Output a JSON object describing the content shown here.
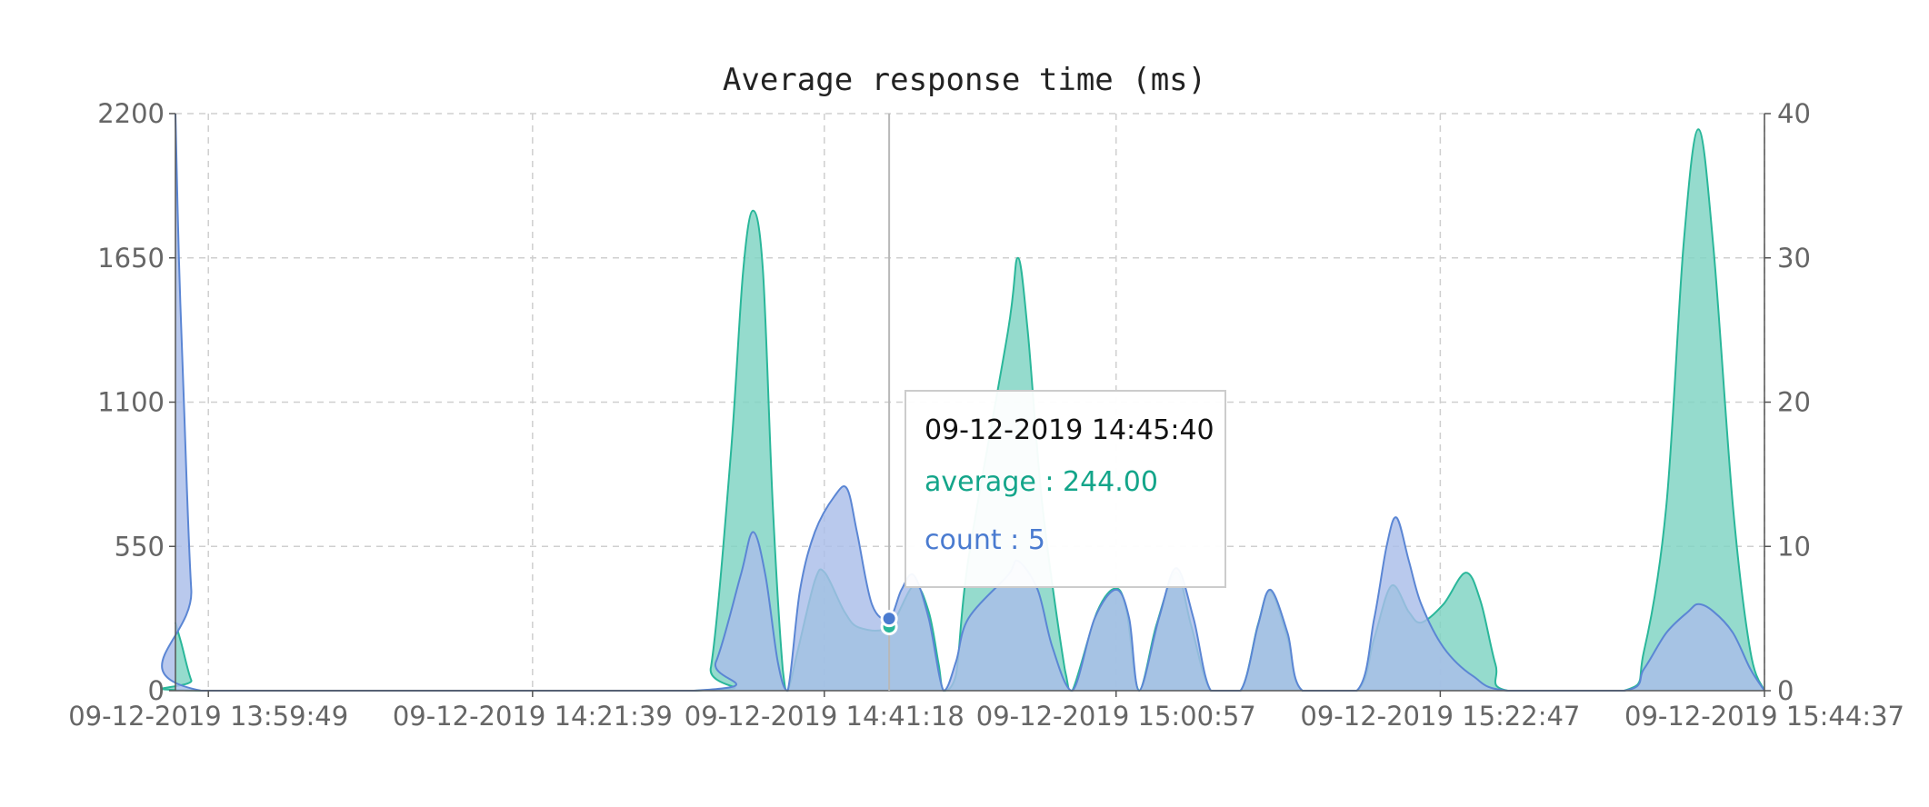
{
  "chart_data": {
    "type": "area",
    "title": "Average response time (ms)",
    "x_ticks": [
      "09-12-2019 13:59:49",
      "09-12-2019 14:21:39",
      "09-12-2019 14:41:18",
      "09-12-2019 15:00:57",
      "09-12-2019 15:22:47",
      "09-12-2019 15:44:37"
    ],
    "x_range": [
      "09-12-2019 13:57:36",
      "09-12-2019 15:44:37"
    ],
    "y_left": {
      "ticks": [
        0,
        550,
        1100,
        1650,
        2200
      ],
      "range": [
        0,
        2200
      ]
    },
    "y_right": {
      "ticks": [
        0,
        10,
        20,
        30,
        40
      ],
      "range": [
        0,
        40
      ]
    },
    "grid": true,
    "series": [
      {
        "name": "average",
        "axis": "left",
        "color": "#2ab79a",
        "fill": "#7ed3c2",
        "points": [
          [
            "09-12-2019 13:57:36",
            260
          ],
          [
            "09-12-2019 13:58:00",
            180
          ],
          [
            "09-12-2019 13:58:40",
            40
          ],
          [
            "09-12-2019 13:59:20",
            0
          ],
          [
            "09-12-2019 14:32:30",
            0
          ],
          [
            "09-12-2019 14:33:40",
            90
          ],
          [
            "09-12-2019 14:35:00",
            900
          ],
          [
            "09-12-2019 14:35:50",
            1600
          ],
          [
            "09-12-2019 14:36:30",
            1830
          ],
          [
            "09-12-2019 14:37:10",
            1600
          ],
          [
            "09-12-2019 14:37:50",
            700
          ],
          [
            "09-12-2019 14:38:30",
            80
          ],
          [
            "09-12-2019 14:38:50",
            0
          ],
          [
            "09-12-2019 14:39:30",
            150
          ],
          [
            "09-12-2019 14:40:40",
            420
          ],
          [
            "09-12-2019 14:41:20",
            450
          ],
          [
            "09-12-2019 14:42:40",
            300
          ],
          [
            "09-12-2019 14:43:40",
            240
          ],
          [
            "09-12-2019 14:45:40",
            244
          ],
          [
            "09-12-2019 14:47:20",
            400
          ],
          [
            "09-12-2019 14:48:20",
            300
          ],
          [
            "09-12-2019 14:49:00",
            100
          ],
          [
            "09-12-2019 14:49:20",
            0
          ],
          [
            "09-12-2019 14:50:10",
            60
          ],
          [
            "09-12-2019 14:51:00",
            500
          ],
          [
            "09-12-2019 14:53:40",
            1370
          ],
          [
            "09-12-2019 14:54:20",
            1650
          ],
          [
            "09-12-2019 14:55:00",
            1370
          ],
          [
            "09-12-2019 14:56:00",
            700
          ],
          [
            "09-12-2019 14:57:30",
            80
          ],
          [
            "09-12-2019 14:58:00",
            0
          ],
          [
            "09-12-2019 14:59:40",
            300
          ],
          [
            "09-12-2019 15:00:57",
            390
          ],
          [
            "09-12-2019 15:01:40",
            300
          ],
          [
            "09-12-2019 15:02:30",
            0
          ],
          [
            "09-12-2019 15:03:40",
            250
          ],
          [
            "09-12-2019 15:05:00",
            450
          ],
          [
            "09-12-2019 15:06:00",
            250
          ],
          [
            "09-12-2019 15:07:20",
            0
          ],
          [
            "09-12-2019 15:09:20",
            0
          ],
          [
            "09-12-2019 15:10:30",
            250
          ],
          [
            "09-12-2019 15:11:20",
            380
          ],
          [
            "09-12-2019 15:12:30",
            200
          ],
          [
            "09-12-2019 15:13:30",
            0
          ],
          [
            "09-12-2019 15:17:10",
            0
          ],
          [
            "09-12-2019 15:18:20",
            200
          ],
          [
            "09-12-2019 15:19:30",
            400
          ],
          [
            "09-12-2019 15:20:40",
            300
          ],
          [
            "09-12-2019 15:21:30",
            260
          ],
          [
            "09-12-2019 15:23:00",
            330
          ],
          [
            "09-12-2019 15:24:30",
            450
          ],
          [
            "09-12-2019 15:25:30",
            340
          ],
          [
            "09-12-2019 15:26:30",
            100
          ],
          [
            "09-12-2019 15:27:20",
            0
          ],
          [
            "09-12-2019 15:35:10",
            0
          ],
          [
            "09-12-2019 15:36:30",
            150
          ],
          [
            "09-12-2019 15:38:00",
            700
          ],
          [
            "09-12-2019 15:39:10",
            1700
          ],
          [
            "09-12-2019 15:40:10",
            2140
          ],
          [
            "09-12-2019 15:41:10",
            1700
          ],
          [
            "09-12-2019 15:42:30",
            700
          ],
          [
            "09-12-2019 15:43:40",
            150
          ],
          [
            "09-12-2019 15:44:37",
            0
          ]
        ]
      },
      {
        "name": "count",
        "axis": "right",
        "color": "#5b86d4",
        "fill": "#a9bde9",
        "points": [
          [
            "09-12-2019 13:57:36",
            40
          ],
          [
            "09-12-2019 13:57:50",
            30
          ],
          [
            "09-12-2019 13:58:10",
            20
          ],
          [
            "09-12-2019 13:58:40",
            7
          ],
          [
            "09-12-2019 13:59:20",
            0
          ],
          [
            "09-12-2019 14:32:30",
            0
          ],
          [
            "09-12-2019 14:34:00",
            2
          ],
          [
            "09-12-2019 14:35:40",
            8
          ],
          [
            "09-12-2019 14:36:30",
            11
          ],
          [
            "09-12-2019 14:37:20",
            8
          ],
          [
            "09-12-2019 14:38:10",
            2
          ],
          [
            "09-12-2019 14:38:50",
            0
          ],
          [
            "09-12-2019 14:39:40",
            7
          ],
          [
            "09-12-2019 14:40:40",
            11
          ],
          [
            "09-12-2019 14:42:00",
            13.5
          ],
          [
            "09-12-2019 14:42:50",
            14
          ],
          [
            "09-12-2019 14:43:30",
            11
          ],
          [
            "09-12-2019 14:44:30",
            6
          ],
          [
            "09-12-2019 14:45:40",
            5
          ],
          [
            "09-12-2019 14:46:30",
            7
          ],
          [
            "09-12-2019 14:47:20",
            8
          ],
          [
            "09-12-2019 14:48:20",
            5
          ],
          [
            "09-12-2019 14:49:20",
            0
          ],
          [
            "09-12-2019 14:50:10",
            2
          ],
          [
            "09-12-2019 14:51:00",
            5
          ],
          [
            "09-12-2019 14:53:40",
            8
          ],
          [
            "09-12-2019 14:54:20",
            9
          ],
          [
            "09-12-2019 14:55:40",
            7
          ],
          [
            "09-12-2019 14:56:40",
            3
          ],
          [
            "09-12-2019 14:58:00",
            0
          ],
          [
            "09-12-2019 14:59:30",
            5
          ],
          [
            "09-12-2019 15:00:57",
            7
          ],
          [
            "09-12-2019 15:01:50",
            5
          ],
          [
            "09-12-2019 15:02:30",
            0
          ],
          [
            "09-12-2019 15:03:50",
            5
          ],
          [
            "09-12-2019 15:05:00",
            8.5
          ],
          [
            "09-12-2019 15:06:10",
            5
          ],
          [
            "09-12-2019 15:07:20",
            0
          ],
          [
            "09-12-2019 15:09:20",
            0
          ],
          [
            "09-12-2019 15:10:30",
            4.5
          ],
          [
            "09-12-2019 15:11:20",
            7
          ],
          [
            "09-12-2019 15:12:30",
            4
          ],
          [
            "09-12-2019 15:13:30",
            0
          ],
          [
            "09-12-2019 15:17:10",
            0
          ],
          [
            "09-12-2019 15:18:20",
            5
          ],
          [
            "09-12-2019 15:19:10",
            10
          ],
          [
            "09-12-2019 15:19:50",
            12
          ],
          [
            "09-12-2019 15:20:40",
            9
          ],
          [
            "09-12-2019 15:21:30",
            6
          ],
          [
            "09-12-2019 15:23:00",
            3
          ],
          [
            "09-12-2019 15:25:00",
            1
          ],
          [
            "09-12-2019 15:27:20",
            0
          ],
          [
            "09-12-2019 15:35:10",
            0
          ],
          [
            "09-12-2019 15:36:30",
            1.5
          ],
          [
            "09-12-2019 15:38:00",
            4
          ],
          [
            "09-12-2019 15:39:30",
            5.5
          ],
          [
            "09-12-2019 15:40:10",
            6
          ],
          [
            "09-12-2019 15:41:10",
            5.5
          ],
          [
            "09-12-2019 15:42:30",
            4
          ],
          [
            "09-12-2019 15:43:40",
            1.5
          ],
          [
            "09-12-2019 15:44:37",
            0
          ]
        ]
      }
    ],
    "tooltip": {
      "time": "09-12-2019 14:45:40",
      "average_label": "average : 244.00",
      "count_label": "count : 5",
      "x": "09-12-2019 14:45:40"
    }
  }
}
